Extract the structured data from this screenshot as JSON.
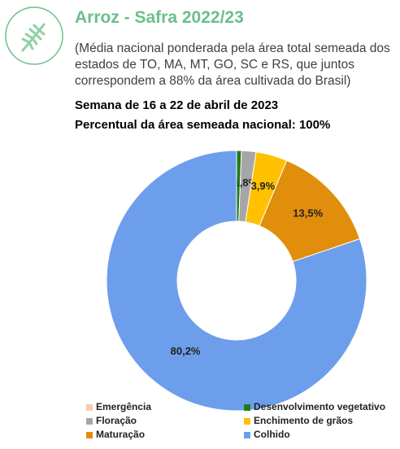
{
  "header": {
    "title": "Arroz - Safra 2022/23",
    "subtitle": "(Média nacional ponderada pela área total semeada dos estados de TO, MA, MT, GO, SC e RS, que juntos correspondem a 88% da área cultivada do Brasil)"
  },
  "chart_data": {
    "type": "pie",
    "title": "Semana de 16 a 22 de abril de 2023",
    "subtitle": "Percentual da área semeada nacional: 100%",
    "categories": [
      "Emergência",
      "Desenvolvimento vegetativo",
      "Floração",
      "Enchimento de grãos",
      "Maturação",
      "Colhido"
    ],
    "values": [
      0,
      0.6,
      1.8,
      3.9,
      13.5,
      80.2
    ],
    "value_labels": [
      null,
      null,
      "1,8%",
      "3,9%",
      "13,5%",
      "80,2%"
    ],
    "colors": [
      "#f8cbad",
      "#1e7b1e",
      "#a6a6a6",
      "#ffc000",
      "#e08e0b",
      "#6d9eeb"
    ],
    "donut": true
  }
}
